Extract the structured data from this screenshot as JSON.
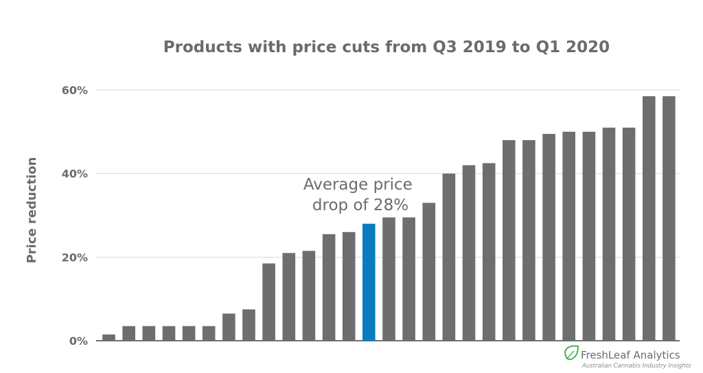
{
  "chart_data": {
    "type": "bar",
    "title": "Products with price cuts from Q3 2019 to Q1 2020",
    "xlabel": "",
    "ylabel": "Price reduction",
    "ylim": [
      0,
      60
    ],
    "yticks": [
      {
        "value": 0,
        "label": "0%"
      },
      {
        "value": 20,
        "label": "20%"
      },
      {
        "value": 40,
        "label": "40%"
      },
      {
        "value": 60,
        "label": "60%"
      }
    ],
    "grid": true,
    "values": [
      1.5,
      3.5,
      3.5,
      3.5,
      3.5,
      3.5,
      6.5,
      7.5,
      18.5,
      21,
      21.5,
      25.5,
      26,
      28,
      29.5,
      29.5,
      33,
      40,
      42,
      42.5,
      48,
      48,
      49.5,
      50,
      50,
      51,
      51,
      58.5,
      58.5
    ],
    "highlight_index": 13,
    "bar_color": "#6e6e70",
    "highlight_color": "#0a7cc1",
    "annotation": {
      "lines": [
        "Average price",
        "drop of 28%"
      ]
    }
  },
  "branding": {
    "name": "FreshLeaf Analytics",
    "tagline": "Australian Cannabis Industry Insights",
    "color": "#4caf50"
  }
}
